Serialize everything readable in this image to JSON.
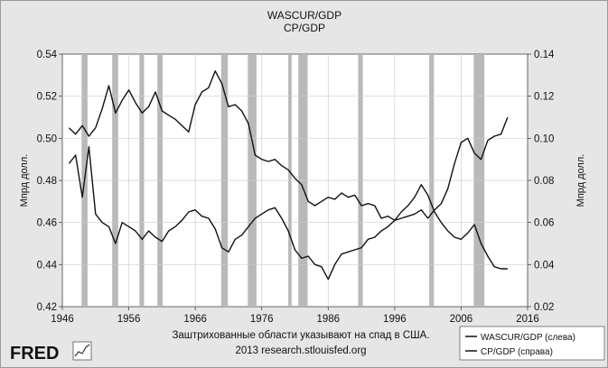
{
  "chart_data": {
    "type": "line",
    "title": "WASCUR/GDP",
    "subtitle": "CP/GDP",
    "ylabel_left": "Мпрд долл.",
    "ylabel_right": "Мпрд долл.",
    "ylim_left": [
      0.42,
      0.54
    ],
    "ylim_right": [
      0.02,
      0.14
    ],
    "xlim": [
      1946,
      2016
    ],
    "x_ticks": [
      "1946",
      "1956",
      "1966",
      "1976",
      "1986",
      "1996",
      "2006",
      "2016"
    ],
    "y_ticks_left": [
      "0.42",
      "0.44",
      "0.46",
      "0.48",
      "0.50",
      "0.52",
      "0.54"
    ],
    "y_ticks_right": [
      "0.02",
      "0.04",
      "0.06",
      "0.08",
      "0.10",
      "0.12",
      "0.14"
    ],
    "grid": true,
    "legend_position": "bottom-right",
    "note_line1": "Заштрихованные области указывают на спад в США.",
    "note_line2": "2013 research.stlouisfed.org",
    "logo": "FRED",
    "recessions": [
      [
        1948.9,
        1949.8
      ],
      [
        1953.5,
        1954.4
      ],
      [
        1957.6,
        1958.3
      ],
      [
        1960.3,
        1961.1
      ],
      [
        1969.9,
        1970.9
      ],
      [
        1973.9,
        1975.2
      ],
      [
        1980.0,
        1980.5
      ],
      [
        1981.5,
        1982.9
      ],
      [
        1990.5,
        1991.2
      ],
      [
        2001.2,
        2001.9
      ],
      [
        2007.9,
        2009.5
      ]
    ],
    "series": [
      {
        "name": "WASCUR/GDP (слева)",
        "axis": "left",
        "x": [
          1947,
          1948,
          1949,
          1950,
          1951,
          1952,
          1953,
          1954,
          1955,
          1956,
          1957,
          1958,
          1959,
          1960,
          1961,
          1962,
          1963,
          1964,
          1965,
          1966,
          1967,
          1968,
          1969,
          1970,
          1971,
          1972,
          1973,
          1974,
          1975,
          1976,
          1977,
          1978,
          1979,
          1980,
          1981,
          1982,
          1983,
          1984,
          1985,
          1986,
          1987,
          1988,
          1989,
          1990,
          1991,
          1992,
          1993,
          1994,
          1995,
          1996,
          1997,
          1998,
          1999,
          2000,
          2001,
          2002,
          2003,
          2004,
          2005,
          2006,
          2007,
          2008,
          2009,
          2010,
          2011,
          2012,
          2013
        ],
        "values": [
          0.505,
          0.502,
          0.506,
          0.501,
          0.505,
          0.514,
          0.525,
          0.512,
          0.518,
          0.523,
          0.517,
          0.512,
          0.515,
          0.522,
          0.513,
          0.511,
          0.509,
          0.506,
          0.503,
          0.516,
          0.522,
          0.524,
          0.532,
          0.526,
          0.515,
          0.516,
          0.513,
          0.507,
          0.492,
          0.49,
          0.489,
          0.49,
          0.487,
          0.485,
          0.481,
          0.478,
          0.47,
          0.468,
          0.47,
          0.472,
          0.471,
          0.474,
          0.472,
          0.473,
          0.468,
          0.469,
          0.468,
          0.462,
          0.463,
          0.461,
          0.465,
          0.468,
          0.472,
          0.478,
          0.473,
          0.465,
          0.46,
          0.456,
          0.453,
          0.452,
          0.455,
          0.459,
          0.45,
          0.444,
          0.439,
          0.438,
          0.438
        ]
      },
      {
        "name": "CP/GDP (справа)",
        "axis": "right",
        "x": [
          1947,
          1948,
          1949,
          1950,
          1951,
          1952,
          1953,
          1954,
          1955,
          1956,
          1957,
          1958,
          1959,
          1960,
          1961,
          1962,
          1963,
          1964,
          1965,
          1966,
          1967,
          1968,
          1969,
          1970,
          1971,
          1972,
          1973,
          1974,
          1975,
          1976,
          1977,
          1978,
          1979,
          1980,
          1981,
          1982,
          1983,
          1984,
          1985,
          1986,
          1987,
          1988,
          1989,
          1990,
          1991,
          1992,
          1993,
          1994,
          1995,
          1996,
          1997,
          1998,
          1999,
          2000,
          2001,
          2002,
          2003,
          2004,
          2005,
          2006,
          2007,
          2008,
          2009,
          2010,
          2011,
          2012,
          2013
        ],
        "values": [
          0.088,
          0.092,
          0.072,
          0.096,
          0.064,
          0.06,
          0.058,
          0.05,
          0.06,
          0.058,
          0.056,
          0.052,
          0.056,
          0.053,
          0.051,
          0.056,
          0.058,
          0.061,
          0.065,
          0.066,
          0.063,
          0.062,
          0.057,
          0.048,
          0.046,
          0.052,
          0.054,
          0.058,
          0.062,
          0.064,
          0.066,
          0.067,
          0.062,
          0.056,
          0.047,
          0.043,
          0.044,
          0.04,
          0.039,
          0.033,
          0.04,
          0.045,
          0.046,
          0.047,
          0.048,
          0.052,
          0.053,
          0.056,
          0.058,
          0.061,
          0.062,
          0.063,
          0.064,
          0.066,
          0.062,
          0.066,
          0.069,
          0.076,
          0.088,
          0.098,
          0.1,
          0.093,
          0.09,
          0.099,
          0.101,
          0.102,
          0.11
        ]
      }
    ]
  }
}
